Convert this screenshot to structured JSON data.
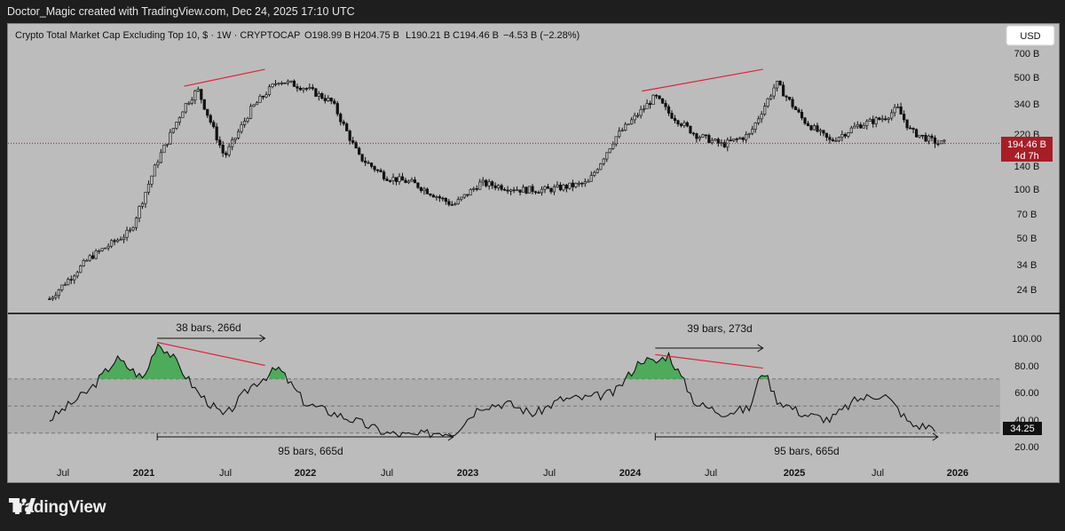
{
  "header": {
    "credit": "Doctor_Magic created with TradingView.com, Dec 24, 2025 17:10 UTC"
  },
  "legend": {
    "title": "Crypto Total Market Cap Excluding Top 10, $ · 1W · CRYPTOCAP",
    "open": "O198.99 B",
    "high": "H204.75 B",
    "low": "L190.21 B",
    "close": "C194.46 B",
    "change": "−4.53 B (−2.28%)"
  },
  "currency_button": "USD",
  "price_tag": {
    "value": "194.46 B",
    "countdown": "4d 7h"
  },
  "rsi_tag": "34.25",
  "brand": {
    "name": "TradingView"
  },
  "colors": {
    "background": "#bcbcbc",
    "candle": "#111111",
    "trendline": "#e0233a",
    "rsi_fill_overbought": "#3aa84a",
    "rsi_band": "#a9a9a9",
    "price_tag": "#a71e26"
  },
  "annotations": {
    "left_top": "38 bars, 266d",
    "right_top": "39 bars, 273d",
    "left_bottom": "95 bars, 665d",
    "right_bottom": "95 bars, 665d"
  },
  "chart_data": [
    {
      "type": "candlestick",
      "title": "Crypto Total Market Cap Excluding Top 10, $ · 1W · CRYPTOCAP",
      "scale": "log",
      "y_ticks": [
        "700 B",
        "500 B",
        "340 B",
        "220 B",
        "140 B",
        "100 B",
        "70 B",
        "50 B",
        "34 B",
        "24 B"
      ],
      "x_ticks": [
        "Jul",
        "2021",
        "Jul",
        "2022",
        "Jul",
        "2023",
        "Jul",
        "2024",
        "Jul",
        "2025",
        "Jul",
        "2026"
      ],
      "series": [
        {
          "x": [
            "2020-06",
            "2020-09",
            "2020-12",
            "2021-02",
            "2021-04",
            "2021-05",
            "2021-07",
            "2021-09",
            "2021-11",
            "2022-01",
            "2022-03",
            "2022-05",
            "2022-07",
            "2022-09",
            "2022-12",
            "2023-02",
            "2023-05",
            "2023-07",
            "2023-10",
            "2023-12",
            "2024-03",
            "2024-04",
            "2024-06",
            "2024-08",
            "2024-10",
            "2024-12",
            "2025-02",
            "2025-04",
            "2025-06",
            "2025-08",
            "2025-09",
            "2025-10",
            "2025-12"
          ],
          "y": [
            21,
            38,
            55,
            150,
            330,
            420,
            160,
            320,
            480,
            430,
            350,
            160,
            120,
            110,
            80,
            110,
            100,
            100,
            110,
            210,
            380,
            300,
            220,
            190,
            220,
            460,
            270,
            200,
            250,
            280,
            320,
            230,
            194.46
          ]
        }
      ],
      "last_value": 194.46,
      "ylim": [
        20,
        800
      ]
    },
    {
      "type": "line",
      "title": "",
      "y_ticks": [
        "100.00",
        "80.00",
        "60.00",
        "40.00",
        "20.00"
      ],
      "ylim": [
        15,
        105
      ],
      "bands": [
        30,
        50,
        70
      ],
      "series": [
        {
          "x": [
            "2020-06",
            "2020-09",
            "2020-11",
            "2021-01",
            "2021-02",
            "2021-03",
            "2021-05",
            "2021-07",
            "2021-09",
            "2021-11",
            "2022-01",
            "2022-03",
            "2022-05",
            "2022-07",
            "2022-09",
            "2022-11",
            "2022-12",
            "2023-02",
            "2023-04",
            "2023-06",
            "2023-08",
            "2023-10",
            "2023-12",
            "2024-02",
            "2024-03",
            "2024-04",
            "2024-06",
            "2024-08",
            "2024-10",
            "2024-11",
            "2024-12",
            "2025-02",
            "2025-04",
            "2025-06",
            "2025-08",
            "2025-09",
            "2025-10",
            "2025-12"
          ],
          "y": [
            40,
            62,
            85,
            70,
            97,
            88,
            60,
            42,
            65,
            78,
            52,
            45,
            38,
            30,
            28,
            31,
            30,
            50,
            52,
            44,
            55,
            56,
            60,
            85,
            82,
            88,
            52,
            45,
            48,
            78,
            55,
            44,
            40,
            55,
            59,
            48,
            36,
            34.25
          ]
        }
      ],
      "last_value": 34.25
    }
  ]
}
